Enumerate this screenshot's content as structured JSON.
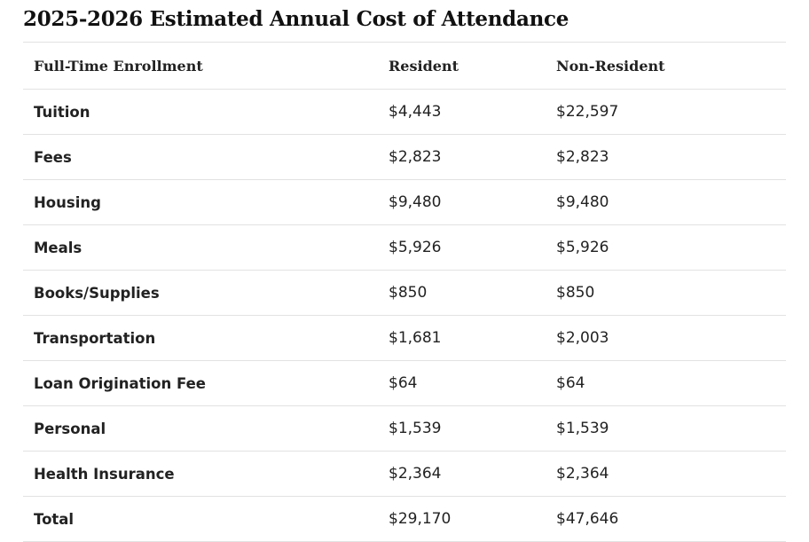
{
  "title": "2025-2026 Estimated Annual Cost of Attendance",
  "table": {
    "header": [
      "Full-Time Enrollment",
      "Resident",
      "Non-Resident"
    ],
    "rows": [
      [
        "Tuition",
        "$4,443",
        "$22,597"
      ],
      [
        "Fees",
        "$2,823",
        "$2,823"
      ],
      [
        "Housing",
        "$9,480",
        "$9,480"
      ],
      [
        "Meals",
        "$5,926",
        "$5,926"
      ],
      [
        "Books/Supplies",
        "$850",
        "$850"
      ],
      [
        "Transportation",
        "$1,681",
        "$2,003"
      ],
      [
        "Loan Origination Fee",
        "$64",
        "$64"
      ],
      [
        "Personal",
        "$1,539",
        "$1,539"
      ],
      [
        "Health Insurance",
        "$2,364",
        "$2,364"
      ],
      [
        "Total",
        "$29,170",
        "$47,646"
      ]
    ]
  }
}
